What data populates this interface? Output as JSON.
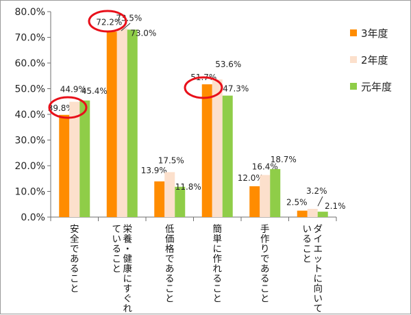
{
  "chart_data": {
    "type": "bar",
    "title": "",
    "xlabel": "",
    "ylabel": "",
    "ylim": [
      0,
      80
    ],
    "y_ticks": [
      "0.0%",
      "10.0%",
      "20.0%",
      "30.0%",
      "40.0%",
      "50.0%",
      "60.0%",
      "70.0%",
      "80.0%"
    ],
    "categories": [
      [
        "安全であること"
      ],
      [
        "栄養・健康にすぐれ",
        "ていること"
      ],
      [
        "低価格であること"
      ],
      [
        "簡単に作れること"
      ],
      [
        "手作りであること"
      ],
      [
        "ダイエットに向いて",
        "いること"
      ]
    ],
    "series": [
      {
        "name": "3年度",
        "color": "#ff8c00",
        "values": [
          39.8,
          72.2,
          13.9,
          51.7,
          12.0,
          2.5
        ],
        "labels": [
          "39.8%",
          "72.2%",
          "13.9%",
          "51.7%",
          "12.0%",
          "2.5%"
        ]
      },
      {
        "name": "2年度",
        "color": "#fce0cc",
        "values": [
          44.9,
          73.5,
          17.5,
          53.6,
          16.4,
          3.2
        ],
        "labels": [
          "44.9%",
          "73.5%",
          "17.5%",
          "53.6%",
          "16.4%",
          "3.2%"
        ]
      },
      {
        "name": "元年度",
        "color": "#8fcd48",
        "values": [
          45.4,
          73.0,
          11.8,
          47.3,
          18.7,
          2.1
        ],
        "labels": [
          "45.4%",
          "73.0%",
          "11.8%",
          "47.3%",
          "18.7%",
          "2.1%"
        ]
      }
    ],
    "grid": false,
    "legend": "right",
    "highlighted_labels": [
      "39.8%",
      "72.2%",
      "51.7%"
    ],
    "highlight_color": "#e8101a"
  }
}
